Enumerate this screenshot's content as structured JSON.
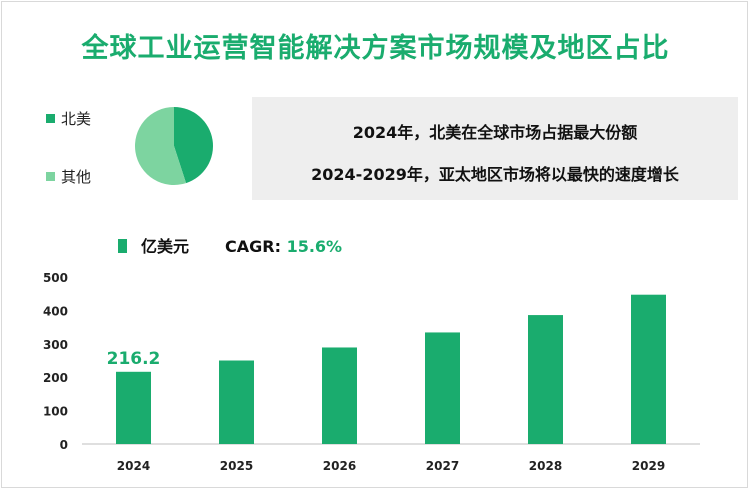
{
  "title": "全球工业运营智能解决方案市场规模及地区占比",
  "pie_legend": [
    {
      "label": "北美",
      "color": "#1aac6e"
    },
    {
      "label": "其他",
      "color": "#7dd4a0"
    }
  ],
  "notes": {
    "line1": "2024年，北美在全球市场占据最大份额",
    "line2": "2024-2029年，亚太地区市场将以最快的速度增长"
  },
  "bar_legend": {
    "label": "亿美元",
    "cagr_label": "CAGR:",
    "cagr_value": "15.6%"
  },
  "colors": {
    "accent": "#1aac6e",
    "light_green": "#7dd4a0"
  },
  "chart_data": [
    {
      "type": "pie",
      "labels": [
        "北美",
        "其他"
      ],
      "values": [
        45,
        55
      ]
    },
    {
      "type": "bar",
      "categories": [
        "2024",
        "2025",
        "2026",
        "2027",
        "2028",
        "2029"
      ],
      "values": [
        216.2,
        250,
        289,
        334,
        386,
        447
      ],
      "data_labels": [
        "216.2",
        "",
        "",
        "",
        "",
        ""
      ],
      "ylim": [
        0,
        500
      ],
      "yticks": [
        0,
        100,
        200,
        300,
        400,
        500
      ],
      "xlabel": "",
      "ylabel": ""
    }
  ]
}
